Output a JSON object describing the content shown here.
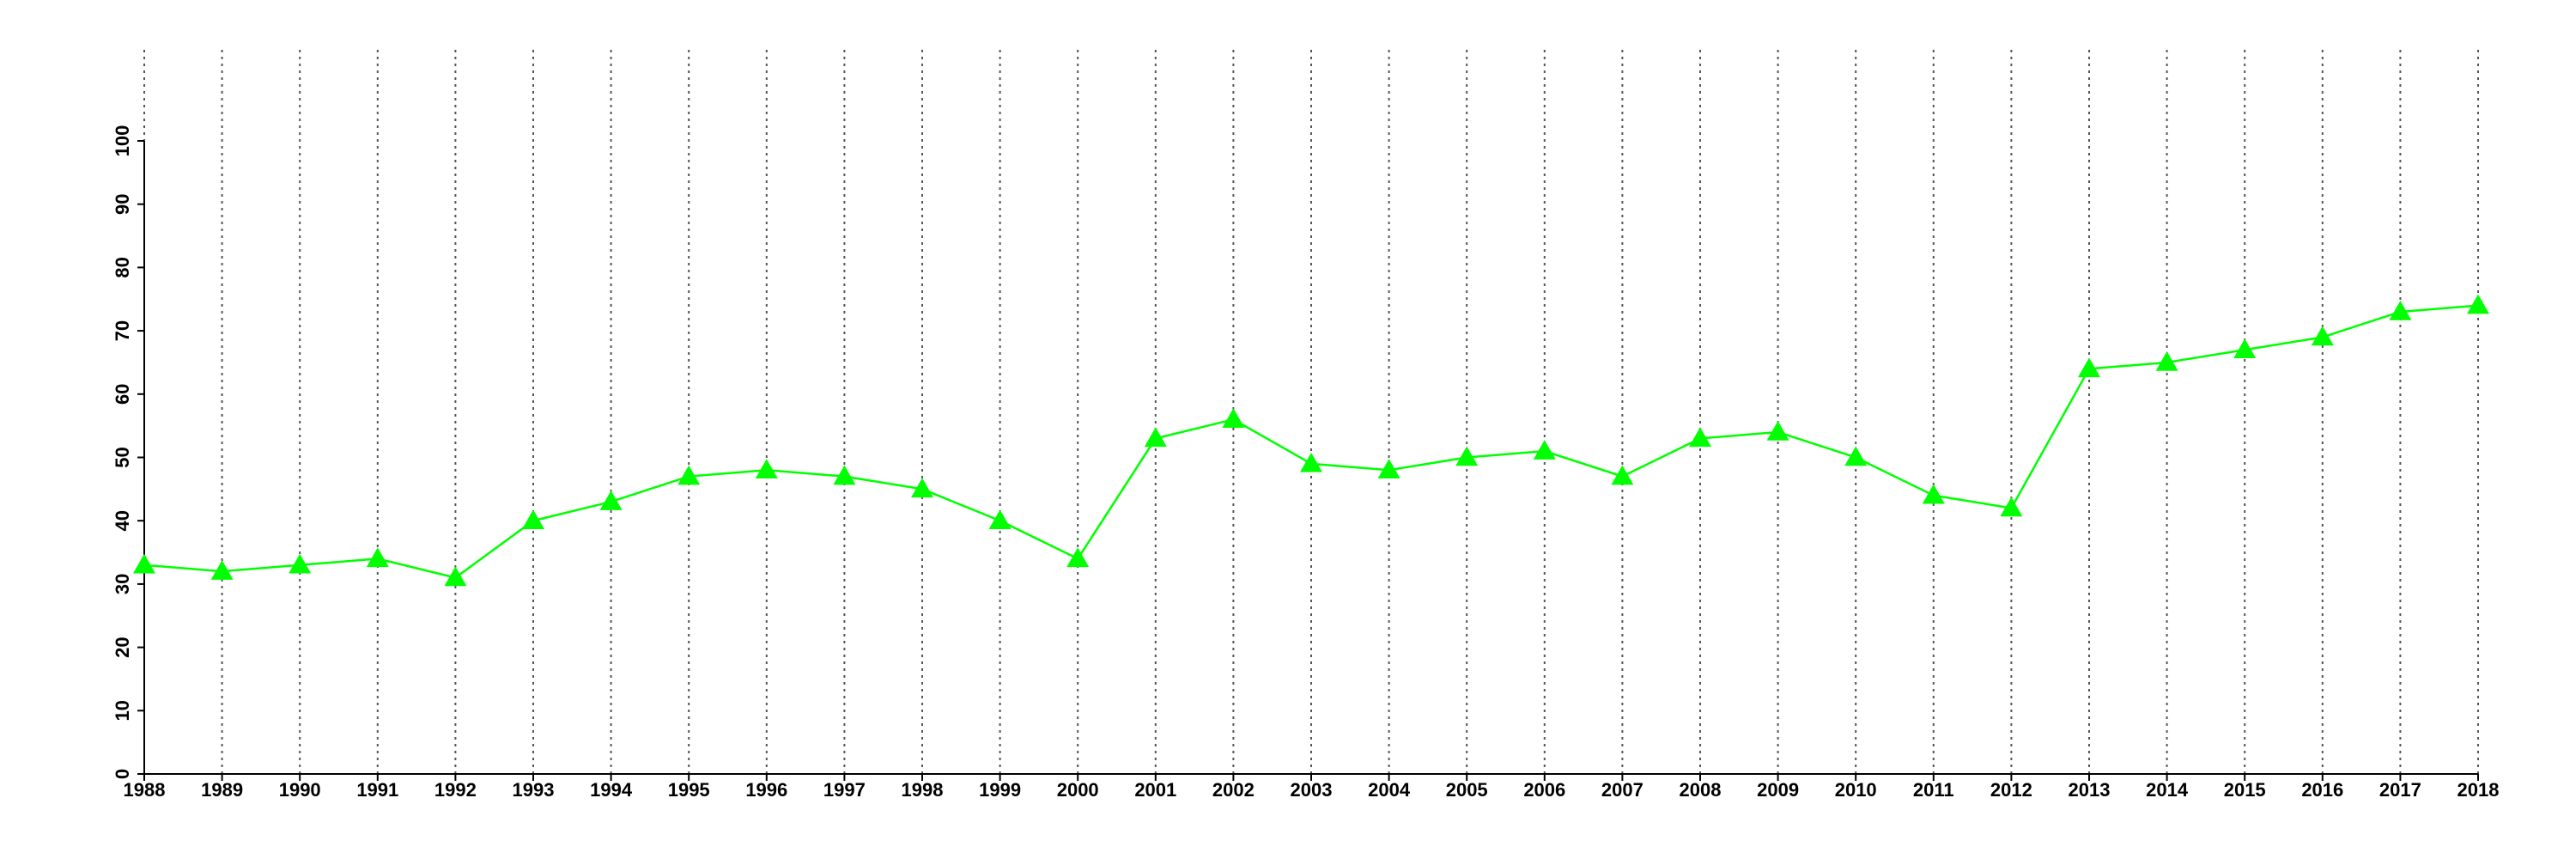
{
  "chart_data": {
    "type": "line",
    "x": [
      1988,
      1989,
      1990,
      1991,
      1992,
      1993,
      1994,
      1995,
      1996,
      1997,
      1998,
      1999,
      2000,
      2001,
      2002,
      2003,
      2004,
      2005,
      2006,
      2007,
      2008,
      2009,
      2010,
      2011,
      2012,
      2013,
      2014,
      2015,
      2016,
      2017,
      2018
    ],
    "series": [
      {
        "color": "#00ff00",
        "marker": "triangle",
        "values": [
          33,
          32,
          33,
          34,
          31,
          40,
          43,
          47,
          48,
          47,
          45,
          40,
          34,
          53,
          56,
          49,
          48,
          50,
          51,
          47,
          53,
          54,
          50,
          44,
          42,
          64,
          65,
          67,
          69,
          73,
          74
        ]
      }
    ],
    "xlim": [
      1988,
      2018
    ],
    "xticks": [
      1988,
      1989,
      1990,
      1991,
      1992,
      1993,
      1994,
      1995,
      1996,
      1997,
      1998,
      1999,
      2000,
      2001,
      2002,
      2003,
      2004,
      2005,
      2006,
      2007,
      2008,
      2009,
      2010,
      2011,
      2012,
      2013,
      2014,
      2015,
      2016,
      2017,
      2018
    ],
    "ylim": [
      0,
      100
    ],
    "yticks": [
      0,
      10,
      20,
      30,
      40,
      50,
      60,
      70,
      80,
      90,
      100
    ],
    "grid": "x"
  }
}
